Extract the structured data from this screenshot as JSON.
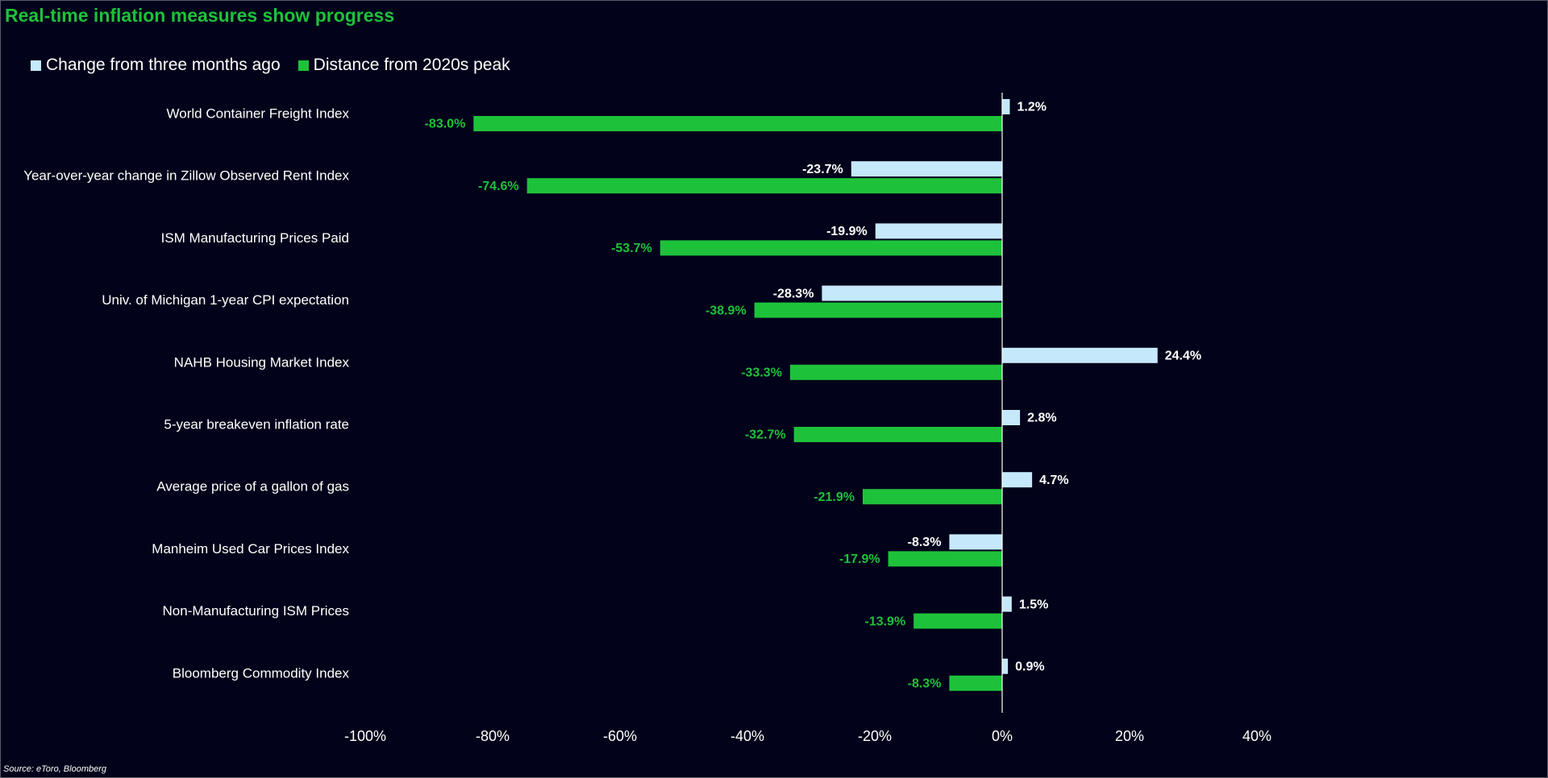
{
  "title": "Real-time inflation measures show progress",
  "source": "Source: eToro, Bloomberg",
  "colors": {
    "background": "#02021a",
    "title": "#1ec23a",
    "series1": "#c5e8fb",
    "series2": "#1ec23a",
    "series1_label": "#ffffff",
    "series2_label": "#1ec23a",
    "axis": "#ffffff"
  },
  "chart_data": {
    "type": "bar",
    "orientation": "horizontal",
    "title": "Real-time inflation measures show progress",
    "categories": [
      "World Container Freight Index",
      "Year-over-year change in Zillow Observed Rent Index",
      "ISM Manufacturing Prices Paid",
      "Univ. of Michigan 1-year CPI expectation",
      "NAHB Housing Market Index",
      "5-year breakeven inflation rate",
      "Average price of a gallon of gas",
      "Manheim Used Car Prices Index",
      "Non-Manufacturing ISM Prices",
      "Bloomberg Commodity Index"
    ],
    "series": [
      {
        "name": "Change from three months ago",
        "values": [
          1.2,
          -23.7,
          -19.9,
          -28.3,
          24.4,
          2.8,
          4.7,
          -8.3,
          1.5,
          0.9
        ],
        "labels": [
          "1.2%",
          "-23.7%",
          "-19.9%",
          "-28.3%",
          "24.4%",
          "2.8%",
          "4.7%",
          "-8.3%",
          "1.5%",
          "0.9%"
        ]
      },
      {
        "name": "Distance from 2020s peak",
        "values": [
          -83.0,
          -74.6,
          -53.7,
          -38.9,
          -33.3,
          -32.7,
          -21.9,
          -17.9,
          -13.9,
          -8.3
        ],
        "labels": [
          "-83.0%",
          "-74.6%",
          "-53.7%",
          "-38.9%",
          "-33.3%",
          "-32.7%",
          "-21.9%",
          "-17.9%",
          "-13.9%",
          "-8.3%"
        ]
      }
    ],
    "xlim": [
      -100,
      40
    ],
    "xticks": [
      -100,
      -80,
      -60,
      -40,
      -20,
      0,
      20,
      40
    ],
    "xtick_labels": [
      "-100%",
      "-80%",
      "-60%",
      "-40%",
      "-20%",
      "0%",
      "20%",
      "40%"
    ],
    "xlabel": "",
    "ylabel": "",
    "grid": false,
    "legend": "top-left"
  }
}
